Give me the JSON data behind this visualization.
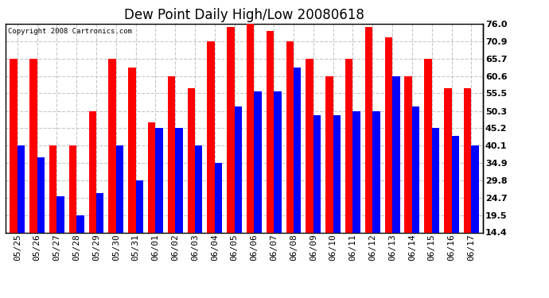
{
  "title": "Dew Point Daily High/Low 20080618",
  "copyright": "Copyright 2008 Cartronics.com",
  "dates": [
    "05/25",
    "05/26",
    "05/27",
    "05/28",
    "05/29",
    "05/30",
    "05/31",
    "06/01",
    "06/02",
    "06/03",
    "06/04",
    "06/05",
    "06/06",
    "06/07",
    "06/08",
    "06/09",
    "06/10",
    "06/11",
    "06/12",
    "06/13",
    "06/14",
    "06/15",
    "06/16",
    "06/17"
  ],
  "highs": [
    65.7,
    65.7,
    40.1,
    40.1,
    50.3,
    65.7,
    63.0,
    47.0,
    60.6,
    57.0,
    70.9,
    75.0,
    76.0,
    74.0,
    70.9,
    65.7,
    60.6,
    65.7,
    75.0,
    72.0,
    60.6,
    65.7,
    57.0,
    57.0
  ],
  "lows": [
    40.1,
    36.5,
    25.0,
    19.5,
    26.0,
    40.1,
    29.8,
    45.2,
    45.2,
    40.1,
    34.9,
    51.5,
    56.0,
    56.0,
    63.0,
    49.0,
    49.0,
    50.3,
    50.3,
    60.6,
    51.5,
    45.2,
    43.0,
    40.1
  ],
  "ymin": 14.4,
  "ymax": 76.0,
  "yticks": [
    14.4,
    19.5,
    24.7,
    29.8,
    34.9,
    40.1,
    45.2,
    50.3,
    55.5,
    60.6,
    65.7,
    70.9,
    76.0
  ],
  "high_color": "#ff0000",
  "low_color": "#0000ff",
  "bg_color": "#ffffff",
  "grid_color": "#c8c8c8",
  "bar_width": 0.38,
  "title_fontsize": 12,
  "tick_fontsize": 8,
  "copyright_fontsize": 6.5
}
